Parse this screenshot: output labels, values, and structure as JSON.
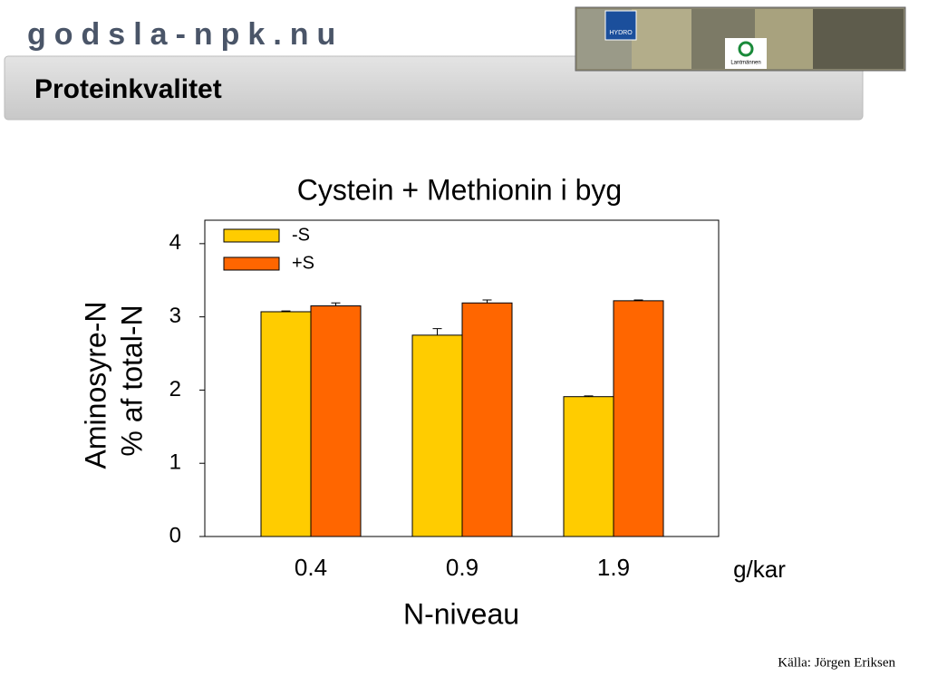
{
  "header": {
    "logo": "godsla-npk.nu",
    "title": "Proteinkvalitet",
    "logos": [
      "HYDRO",
      "Lantmännen"
    ]
  },
  "chart_data": {
    "type": "bar",
    "title": "Cystein + Methionin i byg",
    "categories": [
      "0.4",
      "0.9",
      "1.9"
    ],
    "series": [
      {
        "name": "-S",
        "color": "#ffcc00",
        "values": [
          3.07,
          2.75,
          1.91
        ],
        "errors": [
          0.01,
          0.09,
          0.01
        ]
      },
      {
        "name": "+S",
        "color": "#ff6600",
        "values": [
          3.15,
          3.19,
          3.22
        ],
        "errors": [
          0.04,
          0.04,
          0.01
        ]
      }
    ],
    "ylim": [
      0,
      4.32
    ],
    "yticks": [
      0,
      1,
      2,
      3,
      4
    ],
    "ylabel": [
      "Aminosyre-N",
      "% af total-N"
    ],
    "xlabel": "N-niveau",
    "xunit": "g/kar",
    "legend": "top-left",
    "grid": false
  },
  "source": "Källa: Jörgen Eriksen"
}
